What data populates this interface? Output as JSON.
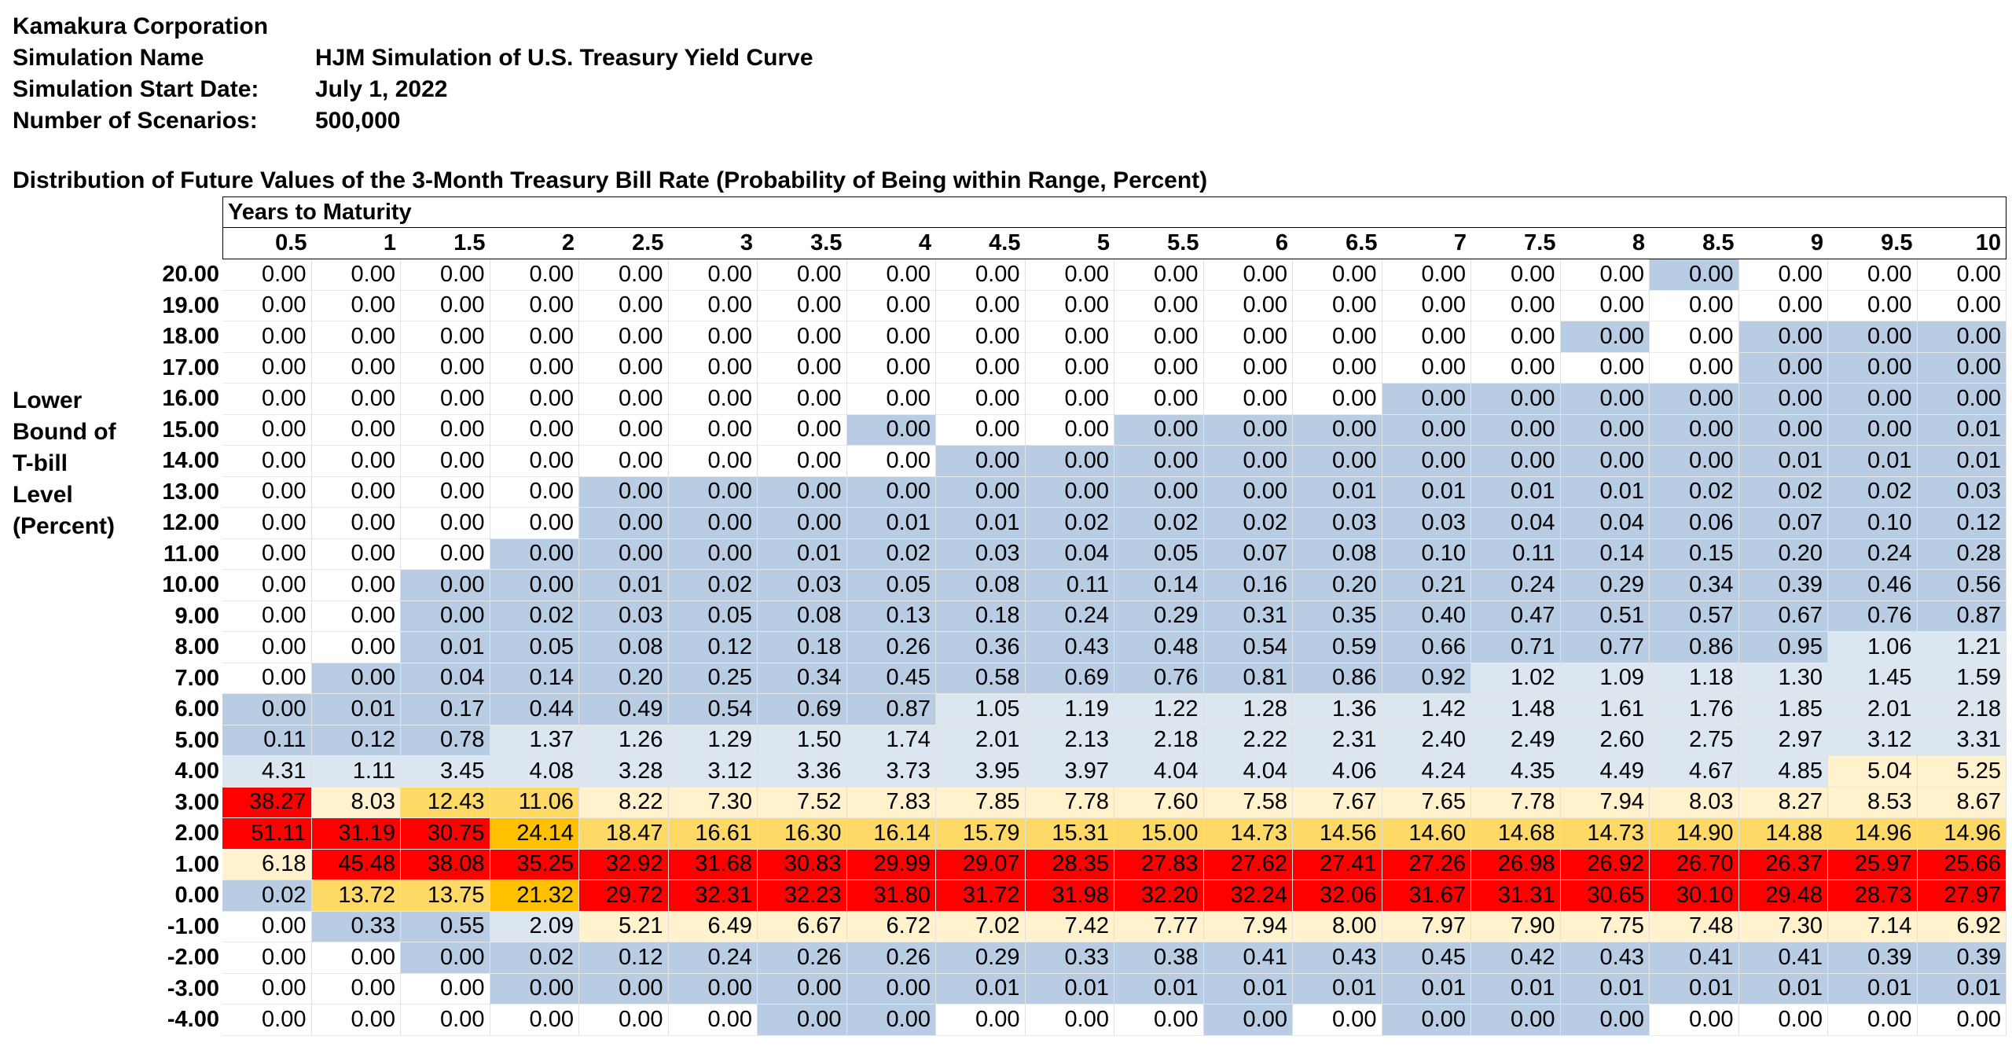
{
  "header": {
    "company": "Kamakura Corporation",
    "rows": [
      {
        "label": "Simulation Name",
        "value": "HJM Simulation of U.S. Treasury Yield Curve"
      },
      {
        "label": "Simulation Start Date:",
        "value": "July 1, 2022"
      },
      {
        "label": "Number of Scenarios:",
        "value": "500,000"
      }
    ]
  },
  "subtitle": "Distribution of Future Values of the 3-Month Treasury Bill Rate (Probability of Being within Range, Percent)",
  "side_label": [
    "Lower",
    "Bound of",
    "T-bill",
    "Level",
    "(Percent)"
  ],
  "table": {
    "column_group": "Years to Maturity",
    "columns": [
      "0.5",
      "1",
      "1.5",
      "2",
      "2.5",
      "3",
      "3.5",
      "4",
      "4.5",
      "5",
      "5.5",
      "6",
      "6.5",
      "7",
      "7.5",
      "8",
      "8.5",
      "9",
      "9.5",
      "10"
    ],
    "row_labels": [
      "20.00",
      "19.00",
      "18.00",
      "17.00",
      "16.00",
      "15.00",
      "14.00",
      "13.00",
      "12.00",
      "11.00",
      "10.00",
      "9.00",
      "8.00",
      "7.00",
      "6.00",
      "5.00",
      "4.00",
      "3.00",
      "2.00",
      "1.00",
      "0.00",
      "-1.00",
      "-2.00",
      "-3.00",
      "-4.00"
    ],
    "values": [
      [
        "0.00",
        "0.00",
        "0.00",
        "0.00",
        "0.00",
        "0.00",
        "0.00",
        "0.00",
        "0.00",
        "0.00",
        "0.00",
        "0.00",
        "0.00",
        "0.00",
        "0.00",
        "0.00",
        "0.00",
        "0.00",
        "0.00",
        "0.00"
      ],
      [
        "0.00",
        "0.00",
        "0.00",
        "0.00",
        "0.00",
        "0.00",
        "0.00",
        "0.00",
        "0.00",
        "0.00",
        "0.00",
        "0.00",
        "0.00",
        "0.00",
        "0.00",
        "0.00",
        "0.00",
        "0.00",
        "0.00",
        "0.00"
      ],
      [
        "0.00",
        "0.00",
        "0.00",
        "0.00",
        "0.00",
        "0.00",
        "0.00",
        "0.00",
        "0.00",
        "0.00",
        "0.00",
        "0.00",
        "0.00",
        "0.00",
        "0.00",
        "0.00",
        "0.00",
        "0.00",
        "0.00",
        "0.00"
      ],
      [
        "0.00",
        "0.00",
        "0.00",
        "0.00",
        "0.00",
        "0.00",
        "0.00",
        "0.00",
        "0.00",
        "0.00",
        "0.00",
        "0.00",
        "0.00",
        "0.00",
        "0.00",
        "0.00",
        "0.00",
        "0.00",
        "0.00",
        "0.00"
      ],
      [
        "0.00",
        "0.00",
        "0.00",
        "0.00",
        "0.00",
        "0.00",
        "0.00",
        "0.00",
        "0.00",
        "0.00",
        "0.00",
        "0.00",
        "0.00",
        "0.00",
        "0.00",
        "0.00",
        "0.00",
        "0.00",
        "0.00",
        "0.00"
      ],
      [
        "0.00",
        "0.00",
        "0.00",
        "0.00",
        "0.00",
        "0.00",
        "0.00",
        "0.00",
        "0.00",
        "0.00",
        "0.00",
        "0.00",
        "0.00",
        "0.00",
        "0.00",
        "0.00",
        "0.00",
        "0.00",
        "0.00",
        "0.01"
      ],
      [
        "0.00",
        "0.00",
        "0.00",
        "0.00",
        "0.00",
        "0.00",
        "0.00",
        "0.00",
        "0.00",
        "0.00",
        "0.00",
        "0.00",
        "0.00",
        "0.00",
        "0.00",
        "0.00",
        "0.00",
        "0.01",
        "0.01",
        "0.01"
      ],
      [
        "0.00",
        "0.00",
        "0.00",
        "0.00",
        "0.00",
        "0.00",
        "0.00",
        "0.00",
        "0.00",
        "0.00",
        "0.00",
        "0.00",
        "0.01",
        "0.01",
        "0.01",
        "0.01",
        "0.02",
        "0.02",
        "0.02",
        "0.03"
      ],
      [
        "0.00",
        "0.00",
        "0.00",
        "0.00",
        "0.00",
        "0.00",
        "0.00",
        "0.01",
        "0.01",
        "0.02",
        "0.02",
        "0.02",
        "0.03",
        "0.03",
        "0.04",
        "0.04",
        "0.06",
        "0.07",
        "0.10",
        "0.12"
      ],
      [
        "0.00",
        "0.00",
        "0.00",
        "0.00",
        "0.00",
        "0.00",
        "0.01",
        "0.02",
        "0.03",
        "0.04",
        "0.05",
        "0.07",
        "0.08",
        "0.10",
        "0.11",
        "0.14",
        "0.15",
        "0.20",
        "0.24",
        "0.28"
      ],
      [
        "0.00",
        "0.00",
        "0.00",
        "0.00",
        "0.01",
        "0.02",
        "0.03",
        "0.05",
        "0.08",
        "0.11",
        "0.14",
        "0.16",
        "0.20",
        "0.21",
        "0.24",
        "0.29",
        "0.34",
        "0.39",
        "0.46",
        "0.56"
      ],
      [
        "0.00",
        "0.00",
        "0.00",
        "0.02",
        "0.03",
        "0.05",
        "0.08",
        "0.13",
        "0.18",
        "0.24",
        "0.29",
        "0.31",
        "0.35",
        "0.40",
        "0.47",
        "0.51",
        "0.57",
        "0.67",
        "0.76",
        "0.87"
      ],
      [
        "0.00",
        "0.00",
        "0.01",
        "0.05",
        "0.08",
        "0.12",
        "0.18",
        "0.26",
        "0.36",
        "0.43",
        "0.48",
        "0.54",
        "0.59",
        "0.66",
        "0.71",
        "0.77",
        "0.86",
        "0.95",
        "1.06",
        "1.21"
      ],
      [
        "0.00",
        "0.00",
        "0.04",
        "0.14",
        "0.20",
        "0.25",
        "0.34",
        "0.45",
        "0.58",
        "0.69",
        "0.76",
        "0.81",
        "0.86",
        "0.92",
        "1.02",
        "1.09",
        "1.18",
        "1.30",
        "1.45",
        "1.59"
      ],
      [
        "0.00",
        "0.01",
        "0.17",
        "0.44",
        "0.49",
        "0.54",
        "0.69",
        "0.87",
        "1.05",
        "1.19",
        "1.22",
        "1.28",
        "1.36",
        "1.42",
        "1.48",
        "1.61",
        "1.76",
        "1.85",
        "2.01",
        "2.18"
      ],
      [
        "0.11",
        "0.12",
        "0.78",
        "1.37",
        "1.26",
        "1.29",
        "1.50",
        "1.74",
        "2.01",
        "2.13",
        "2.18",
        "2.22",
        "2.31",
        "2.40",
        "2.49",
        "2.60",
        "2.75",
        "2.97",
        "3.12",
        "3.31"
      ],
      [
        "4.31",
        "1.11",
        "3.45",
        "4.08",
        "3.28",
        "3.12",
        "3.36",
        "3.73",
        "3.95",
        "3.97",
        "4.04",
        "4.04",
        "4.06",
        "4.24",
        "4.35",
        "4.49",
        "4.67",
        "4.85",
        "5.04",
        "5.25"
      ],
      [
        "38.27",
        "8.03",
        "12.43",
        "11.06",
        "8.22",
        "7.30",
        "7.52",
        "7.83",
        "7.85",
        "7.78",
        "7.60",
        "7.58",
        "7.67",
        "7.65",
        "7.78",
        "7.94",
        "8.03",
        "8.27",
        "8.53",
        "8.67"
      ],
      [
        "51.11",
        "31.19",
        "30.75",
        "24.14",
        "18.47",
        "16.61",
        "16.30",
        "16.14",
        "15.79",
        "15.31",
        "15.00",
        "14.73",
        "14.56",
        "14.60",
        "14.68",
        "14.73",
        "14.90",
        "14.88",
        "14.96",
        "14.96"
      ],
      [
        "6.18",
        "45.48",
        "38.08",
        "35.25",
        "32.92",
        "31.68",
        "30.83",
        "29.99",
        "29.07",
        "28.35",
        "27.83",
        "27.62",
        "27.41",
        "27.26",
        "26.98",
        "26.92",
        "26.70",
        "26.37",
        "25.97",
        "25.66"
      ],
      [
        "0.02",
        "13.72",
        "13.75",
        "21.32",
        "29.72",
        "32.31",
        "32.23",
        "31.80",
        "31.72",
        "31.98",
        "32.20",
        "32.24",
        "32.06",
        "31.67",
        "31.31",
        "30.65",
        "30.10",
        "29.48",
        "28.73",
        "27.97"
      ],
      [
        "0.00",
        "0.33",
        "0.55",
        "2.09",
        "5.21",
        "6.49",
        "6.67",
        "6.72",
        "7.02",
        "7.42",
        "7.77",
        "7.94",
        "8.00",
        "7.97",
        "7.90",
        "7.75",
        "7.48",
        "7.30",
        "7.14",
        "6.92"
      ],
      [
        "0.00",
        "0.00",
        "0.00",
        "0.02",
        "0.12",
        "0.24",
        "0.26",
        "0.26",
        "0.29",
        "0.33",
        "0.38",
        "0.41",
        "0.43",
        "0.45",
        "0.42",
        "0.43",
        "0.41",
        "0.41",
        "0.39",
        "0.39"
      ],
      [
        "0.00",
        "0.00",
        "0.00",
        "0.00",
        "0.00",
        "0.00",
        "0.00",
        "0.00",
        "0.01",
        "0.01",
        "0.01",
        "0.01",
        "0.01",
        "0.01",
        "0.01",
        "0.01",
        "0.01",
        "0.01",
        "0.01",
        "0.01"
      ],
      [
        "0.00",
        "0.00",
        "0.00",
        "0.00",
        "0.00",
        "0.00",
        "0.00",
        "0.00",
        "0.00",
        "0.00",
        "0.00",
        "0.00",
        "0.00",
        "0.00",
        "0.00",
        "0.00",
        "0.00",
        "0.00",
        "0.00",
        "0.00"
      ]
    ],
    "shade_colors": {
      "w": "#ffffff",
      "L": "#dce6f1",
      "B": "#b8cce4",
      "Y": "#fff2cc",
      "O": "#ffd966",
      "A": "#ffc000",
      "R": "#ff0000"
    },
    "shades": [
      "wwwwwwwwwwwwwwwwBwww",
      "wwwwwwwwwwwwwwwwwwww",
      "wwwwwwwwwwwwwwwBwBBB",
      "wwwwwwwwwwwwwwwwwBBB",
      "wwwwwwwwwwwwwBBBBBBB",
      "wwwwwwwBwwBBBBBBBBBB",
      "wwwwwwwwBBBBBBBBBBBB",
      "wwwwBBBBBBBBBBBBBBBB",
      "wwwwBBBBBBBBBBBBBBBB",
      "wwwBBBBBBBBBBBBBBBBB",
      "wwBBBBBBBBBBBBBBBBBB",
      "wwBBBBBBBBBBBBBBBBBB",
      "wwBBBBBBBBBBBBBBBBLL",
      "wBBBBBBBBBBBBBLLLLLL",
      "BBBBBBBBLLLLLLLLLLLL",
      "BBBLLLLLLLLLLLLLLLLL",
      "LLLLLLLLLLLLLLLLLLYY",
      "RYOOYYYYYYYYYYYYYYYY",
      "RRRAOOOOOOOOOOOOOOOO",
      "YRRRRRRRRRRRRRRRRRRR",
      "BOOARRRRRRRRRRRRRRRR",
      "wBBLYYYYYYYYYYYYYYYY",
      "wwBBBBBBBBBBBBBBBBBB",
      "wwwBBBBBBBBBBBBBBBBB",
      "wwwwwwBBwwwBwBBBwwww"
    ]
  }
}
